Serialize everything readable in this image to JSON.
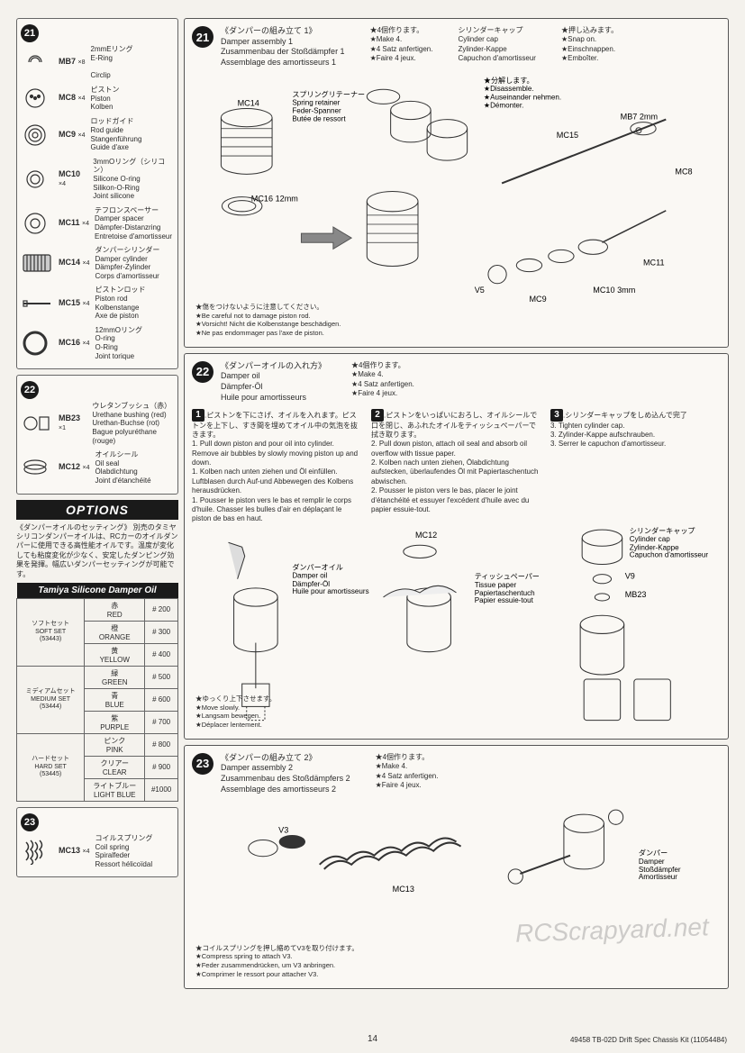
{
  "page_number": "14",
  "footer_code": "49458  TB-02D Drift Spec Chassis Kit  (11054484)",
  "watermark": "RCScrapyard.net",
  "steps": {
    "s21": {
      "badge": "21",
      "title_jp": "《ダンパーの組み立て 1》",
      "title_en": "Damper assembly 1",
      "title_de": "Zusammenbau der Stoßdämpfer 1",
      "title_fr": "Assemblage des amortisseurs 1",
      "note_jp": "★4個作ります。",
      "note_en": "★Make 4.",
      "note_de": "★4 Satz anfertigen.",
      "note_fr": "★Faire 4 jeux.",
      "col2_jp": "シリンダーキャップ",
      "col2_en": "Cylinder cap",
      "col2_de": "Zylinder-Kappe",
      "col2_fr": "Capuchon d'amortisseur",
      "col3_jp": "★押し込みます。",
      "col3_en": "★Snap on.",
      "col3_de": "★Einschnappen.",
      "col3_fr": "★Emboîter.",
      "spring_jp": "スプリングリテーナー",
      "spring_en": "Spring retainer",
      "spring_de": "Feder-Spanner",
      "spring_fr": "Butée de ressort",
      "disassemble_jp": "★分解します。",
      "disassemble_en": "★Disassemble.",
      "disassemble_de": "★Auseinander nehmen.",
      "disassemble_fr": "★Démonter.",
      "caution_jp": "★傷をつけないように注意してください。",
      "caution_en": "★Be careful not to damage piston rod.",
      "caution_de": "★Vorsicht! Nicht die Kolbenstange beschädigen.",
      "caution_fr": "★Ne pas endommager pas l'axe de piston.",
      "labels": {
        "mc14": "MC14",
        "mc16": "MC16 12mm",
        "mc15": "MC15",
        "mb7": "MB7 2mm",
        "mc8": "MC8",
        "v5": "V5",
        "mc9": "MC9",
        "mc10": "MC10 3mm",
        "mc11": "MC11"
      }
    },
    "s22": {
      "badge": "22",
      "title_jp": "《ダンパーオイルの入れ方》",
      "title_en": "Damper oil",
      "title_de": "Dämpfer-Öl",
      "title_fr": "Huile pour amortisseurs",
      "note_jp": "★4個作ります。",
      "note_en": "★Make 4.",
      "note_de": "★4 Satz anfertigen.",
      "note_fr": "★Faire 4 jeux.",
      "col1_jp": "ピストンを下にさげ、オイルを入れます。ピストンを上下し、すき間を埋めてオイル中の気泡を抜きます。",
      "col1_en": "1. Pull down piston and pour oil into cylinder. Remove air bubbles by slowly moving piston up and down.",
      "col1_de": "1. Kolben nach unten ziehen und Öl einfüllen. Luftblasen durch Auf-und Abbewegen des Kolbens herausdrücken.",
      "col1_fr": "1. Pousser le piston vers le bas et remplir le corps d'huile. Chasser les bulles d'air en déplaçant le piston de bas en haut.",
      "col2_jp": "ピストンをいっぱいにおろし、オイルシールで口を閉じ、あふれたオイルをティッシュペーパーで拭き取ります。",
      "col2_en": "2. Pull down piston, attach oil seal and absorb oil overflow with tissue paper.",
      "col2_de": "2. Kolben nach unten ziehen, Ölabdichtung aufstecken, überlaufendes Öl mit Papiertaschentuch abwischen.",
      "col2_fr": "2. Pousser le piston vers le bas, placer le joint d'étanchéité et essuyer l'excédent d'huile avec du papier essuie-tout.",
      "col3_jp": "シリンダーキャップをしめ込んで完了",
      "col3_en": "3. Tighten cylinder cap.",
      "col3_de": "3. Zylinder-Kappe aufschrauben.",
      "col3_fr": "3. Serrer le capuchon d'amortisseur.",
      "move_jp": "★ゆっくり上下させます。",
      "move_en": "★Move slowly.",
      "move_de": "★Langsam bewegen.",
      "move_fr": "★Déplacer lentement.",
      "labels": {
        "mc12": "MC12",
        "v9": "V9",
        "mb23": "MB23",
        "damper_oil_jp": "ダンパーオイル",
        "damper_oil_en": "Damper oil",
        "damper_oil_de": "Dämpfer-Öl",
        "damper_oil_fr": "Huile pour amortisseurs",
        "tissue_jp": "ティッシュペーパー",
        "tissue_en": "Tissue paper",
        "tissue_de": "Papiertaschentuch",
        "tissue_fr": "Papier essuie-tout",
        "cap_jp": "シリンダーキャップ",
        "cap_en": "Cylinder cap",
        "cap_de": "Zylinder-Kappe",
        "cap_fr": "Capuchon d'amortisseur"
      }
    },
    "s23": {
      "badge": "23",
      "title_jp": "《ダンパーの組み立て 2》",
      "title_en": "Damper assembly 2",
      "title_de": "Zusammenbau des Stoßdämpfers 2",
      "title_fr": "Assemblage des amortisseurs 2",
      "note_jp": "★4個作ります。",
      "note_en": "★Make 4.",
      "note_de": "★4 Satz anfertigen.",
      "note_fr": "★Faire 4 jeux.",
      "compress_jp": "★コイルスプリングを押し縮めてV3を取り付けます。",
      "compress_en": "★Compress spring to attach V3.",
      "compress_de": "★Feder zusammendrücken, um V3 anbringen.",
      "compress_fr": "★Comprimer le ressort pour attacher V3.",
      "labels": {
        "v3": "V3",
        "mc13": "MC13",
        "damper_jp": "ダンパー",
        "damper_en": "Damper",
        "damper_de": "Stoßdämpfer",
        "damper_fr": "Amortisseur"
      }
    }
  },
  "parts21": [
    {
      "code": "MB7",
      "qty": "×8",
      "desc_jp": "2mmEリング",
      "desc_en": "E-Ring",
      "desc_fr": "Circlip"
    },
    {
      "code": "MC8",
      "qty": "×4",
      "desc_jp": "ピストン",
      "desc_en": "Piston",
      "desc_de": "Kolben"
    },
    {
      "code": "MC9",
      "qty": "×4",
      "desc_jp": "ロッドガイド",
      "desc_en": "Rod guide",
      "desc_de": "Stangenführung",
      "desc_fr": "Guide d'axe"
    },
    {
      "code": "MC10",
      "qty": "×4",
      "desc_jp": "3mmOリング（シリコン）",
      "desc_en": "Silicone O-ring",
      "desc_de": "Silikon-O-Ring",
      "desc_fr": "Joint silicone"
    },
    {
      "code": "MC11",
      "qty": "×4",
      "desc_jp": "テフロンスペーサー",
      "desc_en": "Damper spacer",
      "desc_de": "Dämpfer-Distanzring",
      "desc_fr": "Entretoise d'amortisseur"
    },
    {
      "code": "MC14",
      "qty": "×4",
      "desc_jp": "ダンパーシリンダー",
      "desc_en": "Damper cylinder",
      "desc_de": "Dämpfer-Zylinder",
      "desc_fr": "Corps d'amortisseur"
    },
    {
      "code": "MC15",
      "qty": "×4",
      "desc_jp": "ピストンロッド",
      "desc_en": "Piston rod",
      "desc_de": "Kolbenstange",
      "desc_fr": "Axe de piston"
    },
    {
      "code": "MC16",
      "qty": "×4",
      "desc_jp": "12mmOリング",
      "desc_en": "O-ring",
      "desc_de": "O-Ring",
      "desc_fr": "Joint torique"
    }
  ],
  "parts22": [
    {
      "code": "MB23",
      "qty": "×1",
      "desc_jp": "ウレタンブッシュ（赤）",
      "desc_en": "Urethane bushing (red)",
      "desc_de": "Urethan-Buchse (rot)",
      "desc_fr": "Bague polyuréthane (rouge)"
    },
    {
      "code": "MC12",
      "qty": "×4",
      "desc_jp": "オイルシール",
      "desc_en": "Oil seal",
      "desc_de": "Ölabdichtung",
      "desc_fr": "Joint d'étanchéité"
    }
  ],
  "parts23": [
    {
      "code": "MC13",
      "qty": "×4",
      "desc_jp": "コイルスプリング",
      "desc_en": "Coil spring",
      "desc_de": "Spiralfeder",
      "desc_fr": "Ressort hélicoïdal"
    }
  ],
  "options": {
    "header": "OPTIONS",
    "text_jp": "《ダンパーオイルのセッティング》\n別売のタミヤシリコンダンパーオイルは、RCカーのオイルダンパーに使用できる高性能オイルです。温度が変化しても粘度変化が少なく、安定したダンピング効果を発揮。幅広いダンパーセッティングが可能です。",
    "table_title": "Tamiya Silicone Damper Oil",
    "sets": [
      {
        "name_jp": "ソフトセット",
        "name_en": "SOFT SET",
        "code": "(53443)",
        "rows": [
          {
            "color_jp": "赤",
            "color_en": "RED",
            "num": "# 200"
          },
          {
            "color_jp": "橙",
            "color_en": "ORANGE",
            "num": "# 300"
          },
          {
            "color_jp": "黄",
            "color_en": "YELLOW",
            "num": "# 400"
          }
        ]
      },
      {
        "name_jp": "ミディアムセット",
        "name_en": "MEDIUM SET",
        "code": "(53444)",
        "rows": [
          {
            "color_jp": "緑",
            "color_en": "GREEN",
            "num": "# 500"
          },
          {
            "color_jp": "青",
            "color_en": "BLUE",
            "num": "# 600"
          },
          {
            "color_jp": "紫",
            "color_en": "PURPLE",
            "num": "# 700"
          }
        ]
      },
      {
        "name_jp": "ハードセット",
        "name_en": "HARD SET",
        "code": "(53445)",
        "rows": [
          {
            "color_jp": "ピンク",
            "color_en": "PINK",
            "num": "# 800"
          },
          {
            "color_jp": "クリアー",
            "color_en": "CLEAR",
            "num": "# 900"
          },
          {
            "color_jp": "ライトブルー",
            "color_en": "LIGHT BLUE",
            "num": "#1000"
          }
        ]
      }
    ]
  }
}
